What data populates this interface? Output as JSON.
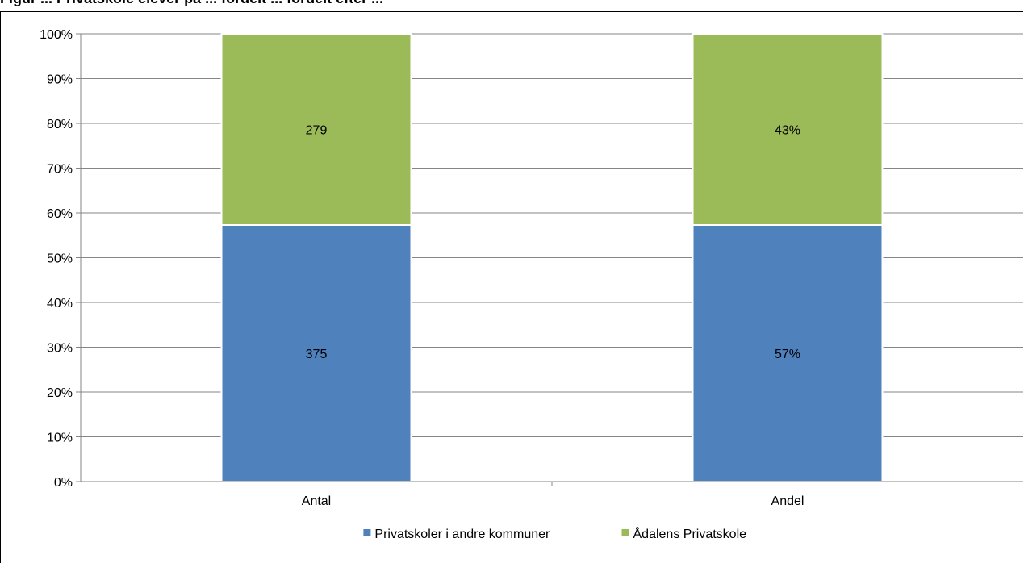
{
  "figure": {
    "title": "Figur ... Privatskole elever på ... fordelt ... fordelt efter ..."
  },
  "chart_data": {
    "type": "bar",
    "stacked": true,
    "categories": [
      "Antal",
      "Andel"
    ],
    "series": [
      {
        "name": "Privatskoler i andre kommuner",
        "values": [
          57.3,
          57.3
        ],
        "labels": [
          "375",
          "57%"
        ],
        "color": "#4F81BD"
      },
      {
        "name": "Ådalens Privatskole",
        "values": [
          42.7,
          42.7
        ],
        "labels": [
          "279",
          "43%"
        ],
        "color": "#9BBB59"
      }
    ],
    "y_ticks": [
      "0%",
      "10%",
      "20%",
      "30%",
      "40%",
      "50%",
      "60%",
      "70%",
      "80%",
      "90%",
      "100%"
    ],
    "ylim": [
      0,
      100
    ],
    "grid": true,
    "legend": "bottom"
  }
}
